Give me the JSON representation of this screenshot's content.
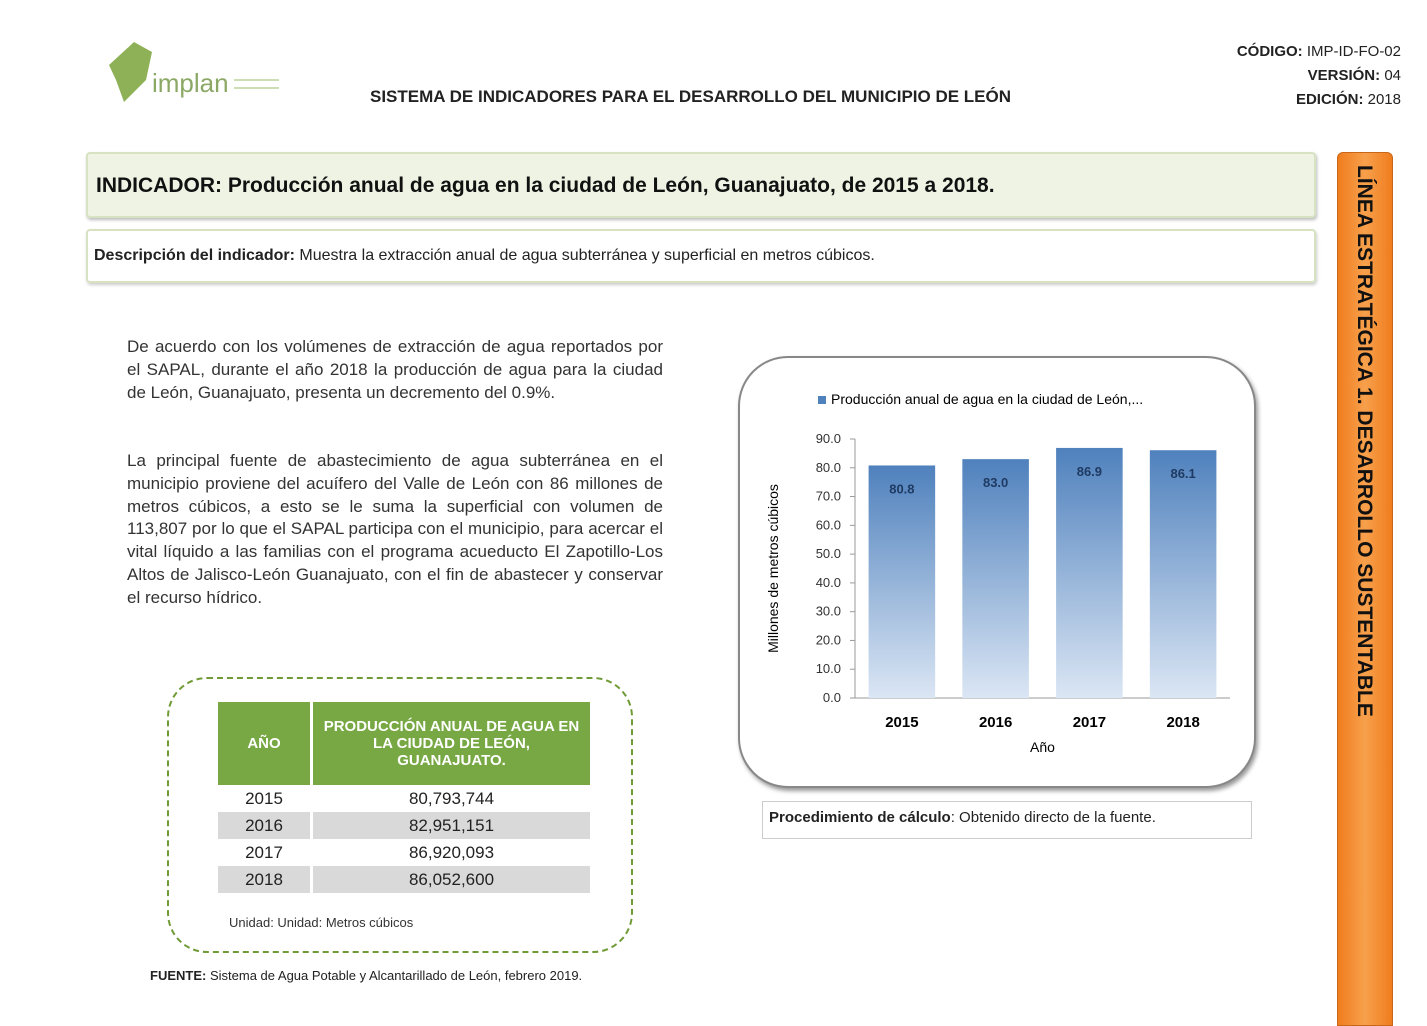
{
  "header": {
    "logo_text": "implan",
    "title": "SISTEMA DE INDICADORES PARA EL DESARROLLO DEL MUNICIPIO DE LEÓN",
    "codigo_label": "CÓDIGO:",
    "codigo": "IMP-ID-FO-02",
    "version_label": "VERSIÓN:",
    "version": "04",
    "edicion_label": "EDICIÓN:",
    "edicion": "2018"
  },
  "indicator": {
    "label": "INDICADOR:",
    "text": "Producción anual de agua en la ciudad de León, Guanajuato, de 2015 a 2018."
  },
  "description": {
    "label": "Descripción del indicador:",
    "text": "Muestra la extracción anual de agua subterránea  y superficial en metros cúbicos."
  },
  "paragraphs": [
    "De acuerdo con los volúmenes de extracción de agua reportados por el SAPAL, durante el año 2018 la producción de agua para la ciudad de León, Guanajuato, presenta un decremento del 0.9%.",
    "La principal fuente de abastecimiento de agua subterránea en el municipio proviene del acuífero del Valle de León con 86 millones de metros cúbicos, a esto se le suma la superficial con volumen de 113,807 por lo que el SAPAL participa con el municipio, para acercar el vital líquido a las familias con el programa acueducto El Zapotillo-Los Altos de Jalisco-León Guanajuato, con el fin de abastecer y conservar el recurso hídrico."
  ],
  "table": {
    "headers": [
      "AÑO",
      "PRODUCCIÓN ANUAL DE AGUA EN LA CIUDAD DE LEÓN, GUANAJUATO."
    ],
    "rows": [
      [
        "2015",
        "80,793,744"
      ],
      [
        "2016",
        "82,951,151"
      ],
      [
        "2017",
        "86,920,093"
      ],
      [
        "2018",
        "86,052,600"
      ]
    ],
    "unit": "Unidad: Unidad:  Metros cúbicos"
  },
  "source": {
    "label": "FUENTE:",
    "text": "Sistema de Agua Potable y Alcantarillado de León, febrero  2019."
  },
  "chart_data": {
    "type": "bar",
    "series": [
      {
        "name": "Producción anual de agua en la ciudad de  León,...",
        "color": "#4f81bd",
        "values": [
          80.8,
          83.0,
          86.9,
          86.1
        ],
        "value_labels": [
          "80.8",
          "83.0",
          "86.9",
          "86.1"
        ]
      }
    ],
    "categories": [
      "2015",
      "2016",
      "2017",
      "2018"
    ],
    "ylabel": "Millones de metros cúbicos",
    "xlabel": "Año",
    "ylim": [
      0,
      90
    ],
    "yticks": [
      {
        "value": 0,
        "label": "0.0"
      },
      {
        "value": 10,
        "label": "10.0"
      },
      {
        "value": 20,
        "label": "20.0"
      },
      {
        "value": 30,
        "label": "30.0"
      },
      {
        "value": 40,
        "label": "40.0"
      },
      {
        "value": 50,
        "label": "50.0"
      },
      {
        "value": 60,
        "label": "60.0"
      },
      {
        "value": 70,
        "label": "70.0"
      },
      {
        "value": 80,
        "label": "80.0"
      },
      {
        "value": 90,
        "label": "90.0"
      }
    ],
    "legend": "top"
  },
  "procedure": {
    "label": "Procedimiento de cálculo",
    "text": ":  Obtenido  directo de la fuente."
  },
  "side_label": "LÍNEA ESTRATÉGICA 1. DESARROLLO SUSTENTABLE"
}
